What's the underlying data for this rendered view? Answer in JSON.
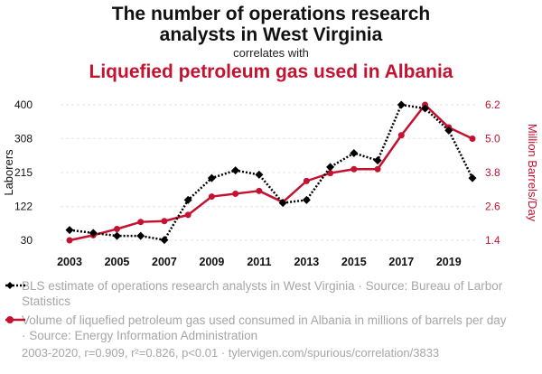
{
  "header": {
    "title_line1": "The number of operations research",
    "title_line2": "analysts in West Virginia",
    "correlates": "correlates with",
    "subtitle": "Liquefied petroleum gas used in Albania"
  },
  "colors": {
    "series1": "#000000",
    "series2": "#c41230",
    "muted": "#a6a6a6"
  },
  "chart_data": {
    "type": "line",
    "x": [
      2003,
      2004,
      2005,
      2006,
      2007,
      2008,
      2009,
      2010,
      2011,
      2012,
      2013,
      2014,
      2015,
      2016,
      2017,
      2018,
      2019,
      2020
    ],
    "x_ticks": [
      "2003",
      "2005",
      "2007",
      "2009",
      "2011",
      "2013",
      "2015",
      "2017",
      "2019"
    ],
    "ylabel_left": "Laborers",
    "ylabel_right": "Million Barrels/Day",
    "y_left_ticks": [
      "30",
      "122",
      "215",
      "308",
      "400"
    ],
    "y_left_range": [
      30,
      400
    ],
    "y_right_ticks": [
      "1.4",
      "2.6",
      "3.8",
      "5.0",
      "6.2"
    ],
    "y_right_range": [
      1.4,
      6.2
    ],
    "grid": "horizontal",
    "series": [
      {
        "name": "BLS estimate of operations research analysts in West Virginia · Source: Bureau of Larbor Statistics",
        "axis": "left",
        "style": "dotted",
        "marker": "diamond",
        "values": [
          58,
          50,
          42,
          42,
          31,
          140,
          200,
          221,
          209,
          132,
          140,
          230,
          268,
          248,
          400,
          390,
          330,
          200
        ]
      },
      {
        "name": "Volume of liquefied petroleum gas used consumed in Albania in millions of barrels per day · Source: Energy Information Administration",
        "axis": "right",
        "style": "solid",
        "marker": "circle",
        "values": [
          1.4,
          1.58,
          1.8,
          2.05,
          2.08,
          2.3,
          2.95,
          3.05,
          3.15,
          2.75,
          3.5,
          3.78,
          3.92,
          3.92,
          5.12,
          6.2,
          5.4,
          5.0
        ]
      }
    ]
  },
  "footer": {
    "text": "2003-2020, r=0.909, r²=0.826, p<0.01 · tylervigen.com/spurious/correlation/3833"
  }
}
